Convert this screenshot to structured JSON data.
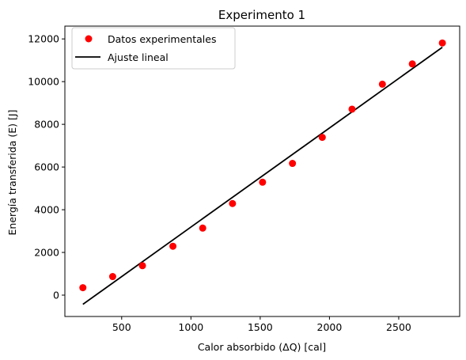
{
  "chart_data": {
    "type": "scatter",
    "title": "Experimento 1",
    "xlabel": "Calor absorbido (ΔQ) [cal]",
    "ylabel": "Energía transferida (E) [J]",
    "xlim": [
      90,
      2940
    ],
    "ylim": [
      -1000,
      12600
    ],
    "xticks": [
      500,
      1000,
      1500,
      2000,
      2500
    ],
    "yticks": [
      0,
      2000,
      4000,
      6000,
      8000,
      10000,
      12000
    ],
    "grid": false,
    "legend_position": "upper-left",
    "series": [
      {
        "name": "Datos experimentales",
        "kind": "points",
        "color": "#ff0000",
        "x": [
          220,
          435,
          650,
          870,
          1085,
          1300,
          1517,
          1733,
          1948,
          2163,
          2382,
          2598,
          2815
        ],
        "y": [
          350,
          870,
          1380,
          2290,
          3140,
          4290,
          5290,
          6170,
          7390,
          8710,
          9880,
          10830,
          11810
        ]
      },
      {
        "name": "Ajuste lineal",
        "kind": "line",
        "color": "#000000",
        "x": [
          220,
          2815
        ],
        "y": [
          -430,
          11610
        ]
      }
    ]
  }
}
